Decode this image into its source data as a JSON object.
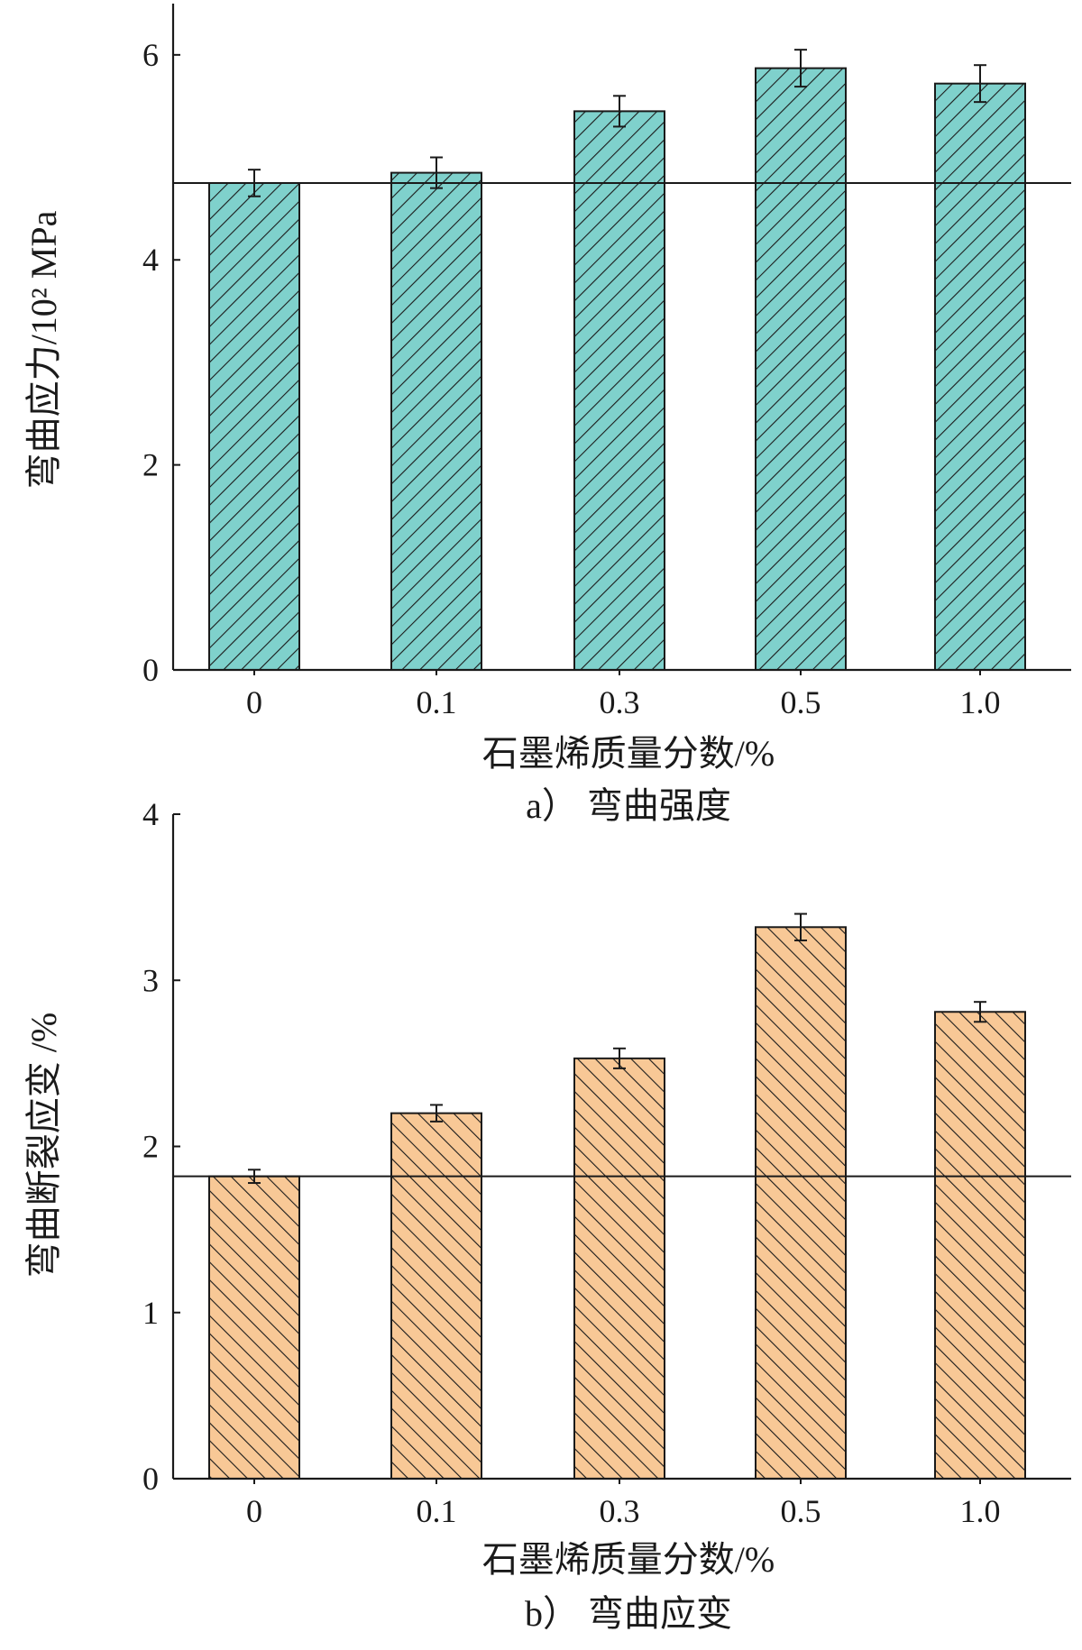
{
  "colors": {
    "teal": "#7fd1cc",
    "orange": "#f8c896",
    "ink": "#1a1a1a"
  },
  "chart_data": [
    {
      "type": "bar",
      "caption": "a） 弯曲强度",
      "xlabel": "石墨烯质量分数/%",
      "ylabel": "弯曲应力/10² MPa",
      "categories": [
        "0",
        "0.1",
        "0.3",
        "0.5",
        "1.0"
      ],
      "values": [
        4.75,
        4.85,
        5.45,
        5.87,
        5.72
      ],
      "errors": [
        0.13,
        0.15,
        0.15,
        0.18,
        0.18
      ],
      "reference_line": 4.75,
      "ylim": [
        0,
        6.5
      ],
      "yticks": [
        "0",
        "2",
        "4",
        "6"
      ],
      "hatch": "/",
      "color": "#7fd1cc",
      "grid": false
    },
    {
      "type": "bar",
      "caption": "b） 弯曲应变",
      "xlabel": "石墨烯质量分数/%",
      "ylabel": "弯曲断裂应变 /%",
      "categories": [
        "0",
        "0.1",
        "0.3",
        "0.5",
        "1.0"
      ],
      "values": [
        1.82,
        2.2,
        2.53,
        3.32,
        2.81
      ],
      "errors": [
        0.04,
        0.05,
        0.06,
        0.08,
        0.06
      ],
      "reference_line": 1.82,
      "ylim": [
        0,
        4
      ],
      "yticks": [
        "0",
        "1",
        "2",
        "3",
        "4"
      ],
      "hatch": "\\",
      "color": "#f8c896",
      "grid": false
    }
  ]
}
